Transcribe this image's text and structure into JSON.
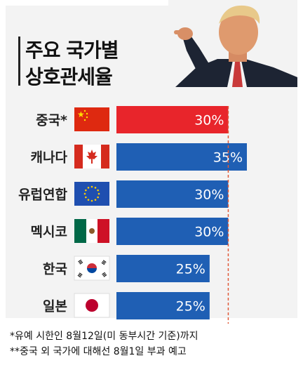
{
  "title": [
    "주요 국가별",
    "상호관세율"
  ],
  "chart_data": {
    "type": "bar",
    "orientation": "horizontal",
    "categories": [
      "중국*",
      "캐나다",
      "유럽연합",
      "멕시코",
      "한국",
      "일본"
    ],
    "values": [
      30,
      35,
      30,
      30,
      25,
      25
    ],
    "value_labels": [
      "30%",
      "35%",
      "30%",
      "30%",
      "25%",
      "25%"
    ],
    "flags": [
      "china-flag",
      "canada-flag",
      "eu-flag",
      "mexico-flag",
      "korea-flag",
      "japan-flag"
    ],
    "bar_colors": [
      "#e8252b",
      "#1f5fb4",
      "#1f5fb4",
      "#1f5fb4",
      "#1f5fb4",
      "#1f5fb4"
    ],
    "reference_line": 30,
    "reference_line_color": "#e05a3a",
    "xlim": [
      0,
      35
    ]
  },
  "notes": [
    "*유예 시한인 8월12일(미 동부시간 기준)까지",
    "**중국 외 국가에 대해선 8월1일 부과 예고"
  ]
}
